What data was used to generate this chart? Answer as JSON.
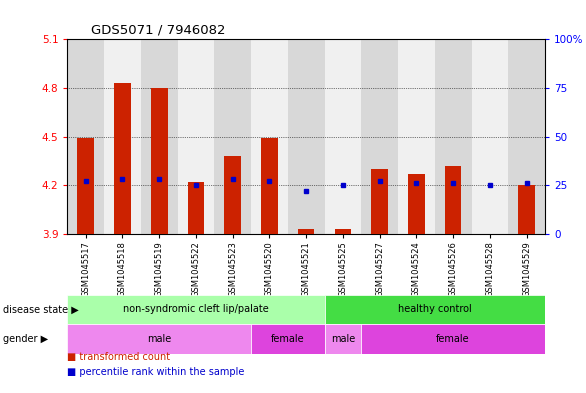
{
  "title": "GDS5071 / 7946082",
  "samples": [
    "GSM1045517",
    "GSM1045518",
    "GSM1045519",
    "GSM1045522",
    "GSM1045523",
    "GSM1045520",
    "GSM1045521",
    "GSM1045525",
    "GSM1045527",
    "GSM1045524",
    "GSM1045526",
    "GSM1045528",
    "GSM1045529"
  ],
  "bar_bottoms": [
    3.9,
    3.9,
    3.9,
    3.9,
    3.9,
    3.9,
    3.9,
    3.9,
    3.9,
    3.9,
    3.9,
    3.9,
    3.9
  ],
  "bar_tops": [
    4.49,
    4.83,
    4.8,
    4.22,
    4.38,
    4.49,
    3.93,
    3.93,
    4.3,
    4.27,
    4.32,
    3.9,
    4.2
  ],
  "percentile_values": [
    27,
    28,
    28,
    25,
    28,
    27,
    22,
    25,
    27,
    26,
    26,
    25,
    26
  ],
  "ylim_left": [
    3.9,
    5.1
  ],
  "ylim_right": [
    0,
    100
  ],
  "yticks_left": [
    3.9,
    4.2,
    4.5,
    4.8,
    5.1
  ],
  "yticks_right": [
    0,
    25,
    50,
    75,
    100
  ],
  "ytick_labels_left": [
    "3.9",
    "4.2",
    "4.5",
    "4.8",
    "5.1"
  ],
  "ytick_labels_right": [
    "0",
    "25",
    "50",
    "75",
    "100%"
  ],
  "bar_color": "#cc2200",
  "dot_color": "#0000cc",
  "grid_color": "#000000",
  "col_bg_even": "#d8d8d8",
  "col_bg_odd": "#f0f0f0",
  "disease_state_groups": [
    {
      "label": "non-syndromic cleft lip/palate",
      "start": 0,
      "end": 7,
      "color": "#aaffaa"
    },
    {
      "label": "healthy control",
      "start": 7,
      "end": 13,
      "color": "#44dd44"
    }
  ],
  "gender_groups": [
    {
      "label": "male",
      "start": 0,
      "end": 5,
      "color": "#ee88ee"
    },
    {
      "label": "female",
      "start": 5,
      "end": 7,
      "color": "#dd44dd"
    },
    {
      "label": "male",
      "start": 7,
      "end": 8,
      "color": "#ee88ee"
    },
    {
      "label": "female",
      "start": 8,
      "end": 13,
      "color": "#dd44dd"
    }
  ],
  "disease_state_label": "disease state",
  "gender_label": "gender",
  "legend_items": [
    "transformed count",
    "percentile rank within the sample"
  ],
  "legend_colors": [
    "#cc2200",
    "#0000cc"
  ]
}
